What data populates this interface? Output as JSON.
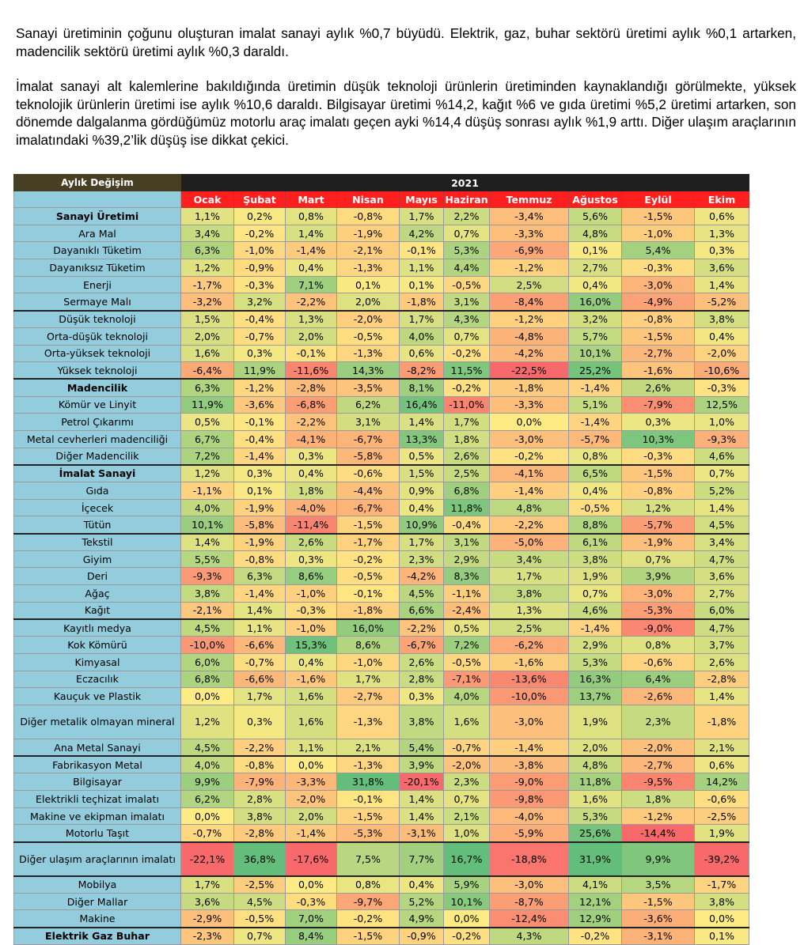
{
  "paragraphs": [
    "Sanayi üretiminin çoğunu oluşturan imalat sanayi aylık %0,7 büyüdü. Elektrik, gaz, buhar sektörü üretimi aylık %0,1 artarken, madencilik sektörü üretimi aylık %0,3 daraldı.",
    "İmalat sanayi alt kalemlerine bakıldığında üretimin düşük teknoloji ürünlerin üretiminden kaynaklandığı görülmekte, yüksek teknolojik ürünlerin üretimi ise aylık %10,6 daraldı. Bilgisayar üretimi %14,2, kağıt %6 ve gıda üretimi %5,2 üretimi artarken, son dönemde dalgalanma gördüğümüz motorlu araç imalatı geçen ayki %14,4 düşüş sonrası aylık %1,9 arttı. Diğer ulaşım araçlarının imalatındaki %39,2’lik düşüş ise dikkat çekici."
  ],
  "table": {
    "corner_label": "Aylık Değişim",
    "year": "2021",
    "months": [
      "Ocak",
      "Şubat",
      "Mart",
      "Nisan",
      "Mayıs",
      "Haziran",
      "Temmuz",
      "Ağustos",
      "Eylül",
      "Ekim"
    ],
    "colors": {
      "header_left": "#463f22",
      "header_year": "#1f1f1f",
      "header_month": "#ff1f1f",
      "label_bg": "#93cddd",
      "scale_low": "#f8696b",
      "scale_mid": "#ffeb84",
      "scale_high": "#63be7b"
    },
    "rows": [
      {
        "label": "Sanayi Üretimi",
        "bold": true,
        "values": [
          "1,1%",
          "0,2%",
          "0,8%",
          "-0,8%",
          "1,7%",
          "2,2%",
          "-3,4%",
          "5,6%",
          "-1,5%",
          "0,6%"
        ]
      },
      {
        "label": "Ara Mal",
        "values": [
          "3,4%",
          "-0,2%",
          "1,4%",
          "-1,9%",
          "4,2%",
          "0,7%",
          "-3,3%",
          "4,8%",
          "-1,0%",
          "1,3%"
        ]
      },
      {
        "label": "Dayanıklı Tüketim",
        "values": [
          "6,3%",
          "-1,0%",
          "-1,4%",
          "-2,1%",
          "-0,1%",
          "5,3%",
          "-6,9%",
          "0,1%",
          "5,4%",
          "0,3%"
        ]
      },
      {
        "label": "Dayanıksız Tüketim",
        "values": [
          "1,2%",
          "-0,9%",
          "0,4%",
          "-1,3%",
          "1,1%",
          "4,4%",
          "-1,2%",
          "2,7%",
          "-0,3%",
          "3,6%"
        ]
      },
      {
        "label": "Enerji",
        "values": [
          "-1,7%",
          "-0,3%",
          "7,1%",
          "0,1%",
          "0,1%",
          "-0,5%",
          "2,5%",
          "0,4%",
          "-3,0%",
          "1,4%"
        ]
      },
      {
        "label": "Sermaye Malı",
        "values": [
          "-3,2%",
          "3,2%",
          "-2,2%",
          "2,0%",
          "-1,8%",
          "3,1%",
          "-8,4%",
          "16,0%",
          "-4,9%",
          "-5,2%"
        ]
      },
      {
        "label": "Düşük teknoloji",
        "sep": true,
        "values": [
          "1,5%",
          "-0,4%",
          "1,3%",
          "-2,0%",
          "1,7%",
          "4,3%",
          "-1,2%",
          "3,2%",
          "-0,8%",
          "3,8%"
        ]
      },
      {
        "label": "Orta-düşük teknoloji",
        "values": [
          "2,0%",
          "-0,7%",
          "2,0%",
          "-0,5%",
          "4,0%",
          "0,7%",
          "-4,8%",
          "5,7%",
          "-1,5%",
          "0,4%"
        ]
      },
      {
        "label": "Orta-yüksek teknoloji",
        "values": [
          "1,6%",
          "0,3%",
          "-0,1%",
          "-1,3%",
          "0,6%",
          "-0,2%",
          "-4,2%",
          "10,1%",
          "-2,7%",
          "-2,0%"
        ]
      },
      {
        "label": "Yüksek teknoloji",
        "values": [
          "-6,4%",
          "11,9%",
          "-11,6%",
          "14,3%",
          "-8,2%",
          "11,5%",
          "-22,5%",
          "25,2%",
          "-1,6%",
          "-10,6%"
        ]
      },
      {
        "label": "Madencilik",
        "bold": true,
        "sep": true,
        "values": [
          "6,3%",
          "-1,2%",
          "-2,8%",
          "-3,5%",
          "8,1%",
          "-0,2%",
          "-1,8%",
          "-1,4%",
          "2,6%",
          "-0,3%"
        ]
      },
      {
        "label": "Kömür ve Linyit",
        "values": [
          "11,9%",
          "-3,6%",
          "-6,8%",
          "6,2%",
          "16,4%",
          "-11,0%",
          "-3,3%",
          "5,1%",
          "-7,9%",
          "12,5%"
        ]
      },
      {
        "label": "Petrol Çıkarımı",
        "values": [
          "0,5%",
          "-0,1%",
          "-2,2%",
          "3,1%",
          "1,4%",
          "1,7%",
          "0,0%",
          "-1,4%",
          "0,3%",
          "1,0%"
        ]
      },
      {
        "label": "Metal cevherleri madenciliği",
        "values": [
          "6,7%",
          "-0,4%",
          "-4,1%",
          "-6,7%",
          "13,3%",
          "1,8%",
          "-3,0%",
          "-5,7%",
          "10,3%",
          "-9,3%"
        ]
      },
      {
        "label": "Diğer Madencilik",
        "values": [
          "7,2%",
          "-1,4%",
          "0,3%",
          "-5,8%",
          "0,5%",
          "2,6%",
          "-0,2%",
          "0,8%",
          "-0,3%",
          "4,6%"
        ]
      },
      {
        "label": "İmalat Sanayi",
        "bold": true,
        "sep": true,
        "values": [
          "1,2%",
          "0,3%",
          "0,4%",
          "-0,6%",
          "1,5%",
          "2,5%",
          "-4,1%",
          "6,5%",
          "-1,5%",
          "0,7%"
        ]
      },
      {
        "label": "Gıda",
        "values": [
          "-1,1%",
          "0,1%",
          "1,8%",
          "-4,4%",
          "0,9%",
          "6,8%",
          "-1,4%",
          "0,4%",
          "-0,8%",
          "5,2%"
        ]
      },
      {
        "label": "İçecek",
        "values": [
          "4,0%",
          "-1,9%",
          "-4,0%",
          "-6,7%",
          "0,4%",
          "11,8%",
          "4,8%",
          "-0,5%",
          "1,2%",
          "1,4%"
        ]
      },
      {
        "label": "Tütün",
        "values": [
          "10,1%",
          "-5,8%",
          "-11,4%",
          "-1,5%",
          "10,9%",
          "-0,4%",
          "-2,2%",
          "8,8%",
          "-5,7%",
          "4,5%"
        ]
      },
      {
        "label": "Tekstil",
        "sep": true,
        "values": [
          "1,4%",
          "-1,9%",
          "2,6%",
          "-1,7%",
          "1,7%",
          "3,1%",
          "-5,0%",
          "6,1%",
          "-1,9%",
          "3,4%"
        ]
      },
      {
        "label": "Giyim",
        "values": [
          "5,5%",
          "-0,8%",
          "0,3%",
          "-0,2%",
          "2,3%",
          "2,9%",
          "3,4%",
          "3,8%",
          "0,7%",
          "4,7%"
        ]
      },
      {
        "label": "Deri",
        "values": [
          "-9,3%",
          "6,3%",
          "8,6%",
          "-0,5%",
          "-4,2%",
          "8,3%",
          "1,7%",
          "1,9%",
          "3,9%",
          "3,6%"
        ]
      },
      {
        "label": "Ağaç",
        "values": [
          "3,8%",
          "-1,4%",
          "-1,0%",
          "-0,1%",
          "4,5%",
          "-1,1%",
          "3,8%",
          "0,7%",
          "-3,0%",
          "2,7%"
        ]
      },
      {
        "label": "Kağıt",
        "values": [
          "-2,1%",
          "1,4%",
          "-0,3%",
          "-1,8%",
          "6,6%",
          "-2,4%",
          "1,3%",
          "4,6%",
          "-5,3%",
          "6,0%"
        ]
      },
      {
        "label": "Kayıtlı medya",
        "sep": true,
        "values": [
          "4,5%",
          "1,1%",
          "-1,0%",
          "16,0%",
          "-2,2%",
          "0,5%",
          "2,5%",
          "-1,4%",
          "-9,0%",
          "4,7%"
        ]
      },
      {
        "label": "Kok Kömürü",
        "values": [
          "-10,0%",
          "-6,6%",
          "15,3%",
          "8,6%",
          "-6,7%",
          "7,2%",
          "-6,2%",
          "2,9%",
          "0,8%",
          "3,7%"
        ]
      },
      {
        "label": "Kimyasal",
        "values": [
          "6,0%",
          "-0,7%",
          "0,4%",
          "-1,0%",
          "2,6%",
          "-0,5%",
          "-1,6%",
          "5,3%",
          "-0,6%",
          "2,6%"
        ]
      },
      {
        "label": "Eczacılık",
        "values": [
          "6,8%",
          "-6,6%",
          "-1,6%",
          "1,7%",
          "2,8%",
          "-7,1%",
          "-13,6%",
          "16,3%",
          "6,4%",
          "-2,8%"
        ]
      },
      {
        "label": "Kauçuk ve Plastik",
        "values": [
          "0,0%",
          "1,7%",
          "1,6%",
          "-2,7%",
          "0,3%",
          "4,0%",
          "-10,0%",
          "13,7%",
          "-2,6%",
          "1,4%"
        ]
      },
      {
        "label": "Diğer metalik olmayan mineral",
        "tall": true,
        "values": [
          "1,2%",
          "0,3%",
          "1,6%",
          "-1,3%",
          "3,8%",
          "1,6%",
          "-3,0%",
          "1,9%",
          "2,3%",
          "-1,8%"
        ]
      },
      {
        "label": "Ana Metal Sanayi",
        "values": [
          "4,5%",
          "-2,2%",
          "1,1%",
          "2,1%",
          "5,4%",
          "-0,7%",
          "-1,4%",
          "2,0%",
          "-2,0%",
          "2,1%"
        ]
      },
      {
        "label": "Fabrikasyon Metal",
        "sep": true,
        "values": [
          "4,0%",
          "-0,8%",
          "0,0%",
          "-1,3%",
          "3,9%",
          "-2,0%",
          "-3,8%",
          "4,8%",
          "-2,7%",
          "0,6%"
        ]
      },
      {
        "label": "Bilgisayar",
        "values": [
          "9,9%",
          "-7,9%",
          "-3,3%",
          "31,8%",
          "-20,1%",
          "2,3%",
          "-9,0%",
          "11,8%",
          "-9,5%",
          "14,2%"
        ]
      },
      {
        "label": "Elektrikli teçhizat imalatı",
        "values": [
          "6,2%",
          "2,8%",
          "-2,0%",
          "-0,1%",
          "1,4%",
          "0,7%",
          "-9,8%",
          "1,6%",
          "1,8%",
          "-0,6%"
        ]
      },
      {
        "label": "Makine ve ekipman imalatı",
        "values": [
          "0,0%",
          "3,8%",
          "2,0%",
          "-1,5%",
          "1,4%",
          "2,1%",
          "-4,0%",
          "5,3%",
          "-1,2%",
          "-2,5%"
        ]
      },
      {
        "label": "Motorlu Taşıt",
        "values": [
          "-0,7%",
          "-2,8%",
          "-1,4%",
          "-5,3%",
          "-3,1%",
          "1,0%",
          "-5,9%",
          "25,6%",
          "-14,4%",
          "1,9%"
        ]
      },
      {
        "label": "Diğer ulaşım araçlarının imalatı",
        "tall": true,
        "sep": true,
        "values": [
          "-22,1%",
          "36,8%",
          "-17,6%",
          "7,5%",
          "7,7%",
          "16,7%",
          "-18,8%",
          "31,9%",
          "9,9%",
          "-39,2%"
        ]
      },
      {
        "label": "Mobilya",
        "sep": true,
        "values": [
          "1,7%",
          "-2,5%",
          "0,0%",
          "0,8%",
          "0,4%",
          "5,9%",
          "-3,0%",
          "4,1%",
          "3,5%",
          "-1,7%"
        ]
      },
      {
        "label": "Diğer Mallar",
        "values": [
          "3,6%",
          "4,5%",
          "-0,3%",
          "-9,7%",
          "5,2%",
          "10,1%",
          "-8,7%",
          "12,1%",
          "-1,5%",
          "3,8%"
        ]
      },
      {
        "label": "Makine",
        "values": [
          "-2,9%",
          "-0,5%",
          "7,0%",
          "-0,2%",
          "4,9%",
          "0,0%",
          "-12,4%",
          "12,9%",
          "-3,6%",
          "0,0%"
        ]
      },
      {
        "label": "Elektrik Gaz Buhar",
        "bold": true,
        "sep": true,
        "values": [
          "-2,3%",
          "0,7%",
          "8,4%",
          "-1,5%",
          "-0,9%",
          "-0,2%",
          "4,3%",
          "-0,2%",
          "-3,1%",
          "0,1%"
        ]
      }
    ]
  }
}
